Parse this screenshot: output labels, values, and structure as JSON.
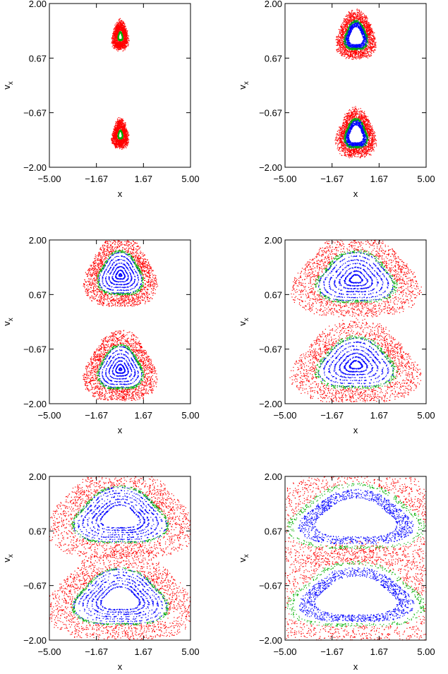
{
  "figure": {
    "rows": 3,
    "cols": 2,
    "colors": {
      "chaotic": "#ff0000",
      "sticky": "#00b000",
      "regular": "#0000ff"
    }
  },
  "chart_data": [
    {
      "type": "scatter",
      "panel": "row1-left",
      "xlabel": "x",
      "ylabel": "v_x",
      "xlim": [
        -5.0,
        5.0
      ],
      "ylim": [
        -2.0,
        2.0
      ],
      "xticks": [
        "−5.00",
        "−1.67",
        "1.67",
        "5.00"
      ],
      "yticks": [
        "2.00",
        "0.67",
        "−0.67",
        "−2.00"
      ],
      "series": [
        {
          "color": "#ff0000",
          "kind": "chaotic",
          "island": {
            "cx": 0.0,
            "cy": 1.2,
            "rx": 0.4,
            "ry": 0.25
          },
          "layer_radius": [
            0.4,
            1.0
          ]
        },
        {
          "color": "#00b000",
          "kind": "sticky",
          "island": {
            "cx": 0.0,
            "cy": 1.2,
            "rx": 0.4,
            "ry": 0.25
          },
          "layer_radius": [
            0.3,
            0.45
          ]
        }
      ]
    },
    {
      "type": "scatter",
      "panel": "row1-right",
      "xlabel": "x",
      "ylabel": "v_x",
      "xlim": [
        -5.0,
        5.0
      ],
      "ylim": [
        -2.0,
        2.0
      ],
      "xticks": [
        "−5.00",
        "−1.67",
        "1.67",
        "5.00"
      ],
      "yticks": [
        "2.00",
        "0.67",
        "−0.67",
        "−2.00"
      ],
      "series": [
        {
          "color": "#ff0000",
          "kind": "chaotic",
          "island": {
            "cx": 0.0,
            "cy": 1.2,
            "rx": 0.9,
            "ry": 0.4
          },
          "layer_radius": [
            0.8,
            1.0
          ]
        },
        {
          "color": "#0000ff",
          "kind": "regular",
          "island": {
            "cx": 0.0,
            "cy": 1.2,
            "rx": 0.9,
            "ry": 0.4
          },
          "layer_radius": [
            0.55,
            0.85
          ]
        },
        {
          "color": "#00b000",
          "kind": "sticky",
          "island": {
            "cx": 0.0,
            "cy": 1.2,
            "rx": 0.9,
            "ry": 0.4
          },
          "layer_radius": [
            0.78,
            0.92
          ]
        }
      ]
    },
    {
      "type": "scatter",
      "panel": "row2-left",
      "xlabel": "x",
      "ylabel": "v_x",
      "xlim": [
        -5.0,
        5.0
      ],
      "ylim": [
        -2.0,
        2.0
      ],
      "xticks": [
        "−5.00",
        "−1.67",
        "1.67",
        "5.00"
      ],
      "yticks": [
        "2.00",
        "0.67",
        "−0.67",
        "−2.00"
      ],
      "series": [
        {
          "color": "#ff0000",
          "kind": "chaotic",
          "island": {
            "cx": 0.0,
            "cy": 1.15,
            "rx": 1.6,
            "ry": 0.55
          },
          "layer_radius": [
            0.95,
            1.0
          ]
        },
        {
          "color": "#0000ff",
          "kind": "regular",
          "island": {
            "cx": 0.0,
            "cy": 1.15,
            "rx": 1.6,
            "ry": 0.55
          },
          "layer_radius": [
            0.05,
            0.9
          ]
        },
        {
          "color": "#00b000",
          "kind": "sticky",
          "island": {
            "cx": 0.0,
            "cy": 1.15,
            "rx": 1.6,
            "ry": 0.55
          },
          "layer_radius": [
            0.9,
            1.0
          ]
        }
      ]
    },
    {
      "type": "scatter",
      "panel": "row2-right",
      "xlabel": "x",
      "ylabel": "v_x",
      "xlim": [
        -5.0,
        5.0
      ],
      "ylim": [
        -2.0,
        2.0
      ],
      "xticks": [
        "−5.00",
        "−1.67",
        "1.67",
        "5.00"
      ],
      "yticks": [
        "2.00",
        "0.67",
        "−0.67",
        "−2.00"
      ],
      "series": [
        {
          "color": "#ff0000",
          "kind": "chaotic",
          "island": {
            "cx": 0.0,
            "cy": 1.05,
            "rx": 2.8,
            "ry": 0.65
          },
          "layer_radius": [
            0.95,
            1.0
          ]
        },
        {
          "color": "#0000ff",
          "kind": "regular",
          "island": {
            "cx": 0.0,
            "cy": 1.05,
            "rx": 2.8,
            "ry": 0.65
          },
          "layer_radius": [
            0.15,
            0.9
          ]
        },
        {
          "color": "#00b000",
          "kind": "sticky",
          "island": {
            "cx": 0.0,
            "cy": 1.05,
            "rx": 2.8,
            "ry": 0.65
          },
          "layer_radius": [
            0.88,
            1.0
          ]
        }
      ]
    },
    {
      "type": "scatter",
      "panel": "row3-left",
      "xlabel": "x",
      "ylabel": "v_x",
      "xlim": [
        -5.0,
        5.0
      ],
      "ylim": [
        -2.0,
        2.0
      ],
      "xticks": [
        "−5.00",
        "−1.67",
        "1.67",
        "5.00"
      ],
      "yticks": [
        "2.00",
        "0.67",
        "−0.67",
        "−2.00"
      ],
      "series": [
        {
          "color": "#ff0000",
          "kind": "chaotic",
          "island": {
            "cx": 0.0,
            "cy": 1.0,
            "rx": 3.3,
            "ry": 0.7
          },
          "layer_radius": [
            0.96,
            1.0
          ]
        },
        {
          "color": "#0000ff",
          "kind": "regular",
          "island": {
            "cx": 0.0,
            "cy": 1.0,
            "rx": 3.3,
            "ry": 0.7
          },
          "layer_radius": [
            0.4,
            0.95
          ]
        },
        {
          "color": "#00b000",
          "kind": "sticky",
          "island": {
            "cx": 0.0,
            "cy": 1.0,
            "rx": 3.3,
            "ry": 0.7
          },
          "layer_radius": [
            0.93,
            1.0
          ]
        }
      ]
    },
    {
      "type": "scatter",
      "panel": "row3-right",
      "xlabel": "x",
      "ylabel": "v_x",
      "xlim": [
        -5.0,
        5.0
      ],
      "ylim": [
        -2.0,
        2.0
      ],
      "xticks": [
        "−5.00",
        "−1.67",
        "1.67",
        "5.00"
      ],
      "yticks": [
        "2.00",
        "0.67",
        "−0.67",
        "−2.00"
      ],
      "series": [
        {
          "color": "#ff0000",
          "kind": "chaotic",
          "island": {
            "cx": 0.0,
            "cy": 0.95,
            "rx": 4.7,
            "ry": 0.8
          },
          "layer_radius": [
            0.97,
            1.0
          ]
        },
        {
          "color": "#0000ff",
          "kind": "regular",
          "island": {
            "cx": 0.0,
            "cy": 0.95,
            "rx": 4.7,
            "ry": 0.8
          },
          "layer_radius": [
            0.6,
            0.82
          ]
        },
        {
          "color": "#00b000",
          "kind": "sticky",
          "island": {
            "cx": 0.0,
            "cy": 0.95,
            "rx": 4.7,
            "ry": 0.8
          },
          "layer_radius": [
            0.9,
            1.0
          ]
        }
      ]
    }
  ]
}
